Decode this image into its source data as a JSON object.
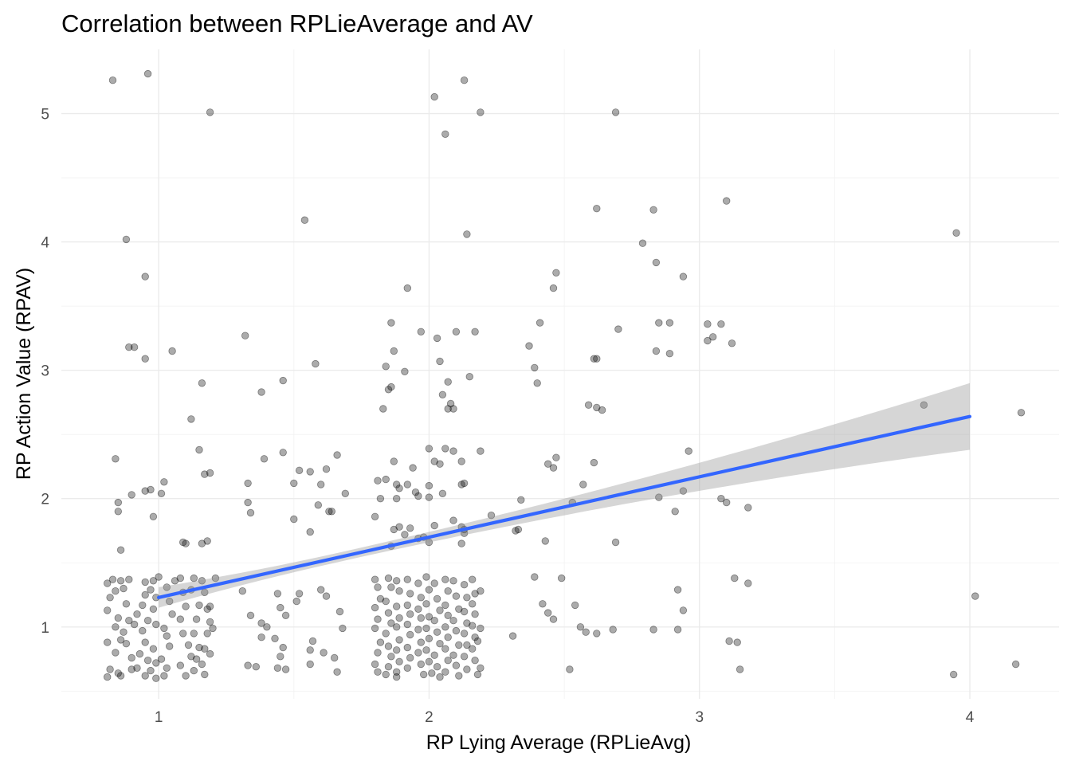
{
  "chart_data": {
    "type": "scatter",
    "title": "Correlation between RPLieAverage and AV",
    "xlabel": "RP Lying Average (RPLieAvg)",
    "ylabel": "RP Action Value (RPAV)",
    "xlim": [
      0.64,
      4.33
    ],
    "ylim": [
      0.44,
      5.5
    ],
    "xticks": [
      1,
      2,
      3,
      4
    ],
    "yticks": [
      1,
      2,
      3,
      4,
      5
    ],
    "grid": true,
    "colors": {
      "points": "#000000",
      "fit_line": "#3366ff",
      "band": "#999999"
    },
    "trend": {
      "method": "linear",
      "x": [
        1,
        4
      ],
      "y": [
        1.23,
        2.64
      ],
      "band_lower": [
        1.15,
        2.38
      ],
      "band_upper": [
        1.31,
        2.9
      ]
    },
    "points": [
      [
        0.83,
        5.26
      ],
      [
        0.96,
        5.31
      ],
      [
        1.19,
        5.01
      ],
      [
        2.02,
        5.13
      ],
      [
        2.13,
        5.26
      ],
      [
        2.19,
        5.01
      ],
      [
        2.06,
        4.84
      ],
      [
        2.69,
        5.01
      ],
      [
        0.88,
        4.02
      ],
      [
        1.54,
        4.17
      ],
      [
        2.14,
        4.06
      ],
      [
        2.62,
        4.26
      ],
      [
        2.83,
        4.25
      ],
      [
        3.1,
        4.32
      ],
      [
        2.79,
        3.99
      ],
      [
        2.84,
        3.84
      ],
      [
        3.95,
        4.07
      ],
      [
        0.95,
        3.73
      ],
      [
        2.47,
        3.76
      ],
      [
        2.46,
        3.64
      ],
      [
        1.92,
        3.64
      ],
      [
        2.94,
        3.73
      ],
      [
        0.89,
        3.18
      ],
      [
        0.91,
        3.18
      ],
      [
        1.05,
        3.15
      ],
      [
        1.32,
        3.27
      ],
      [
        1.58,
        3.05
      ],
      [
        1.86,
        3.37
      ],
      [
        1.97,
        3.3
      ],
      [
        2.03,
        3.25
      ],
      [
        2.1,
        3.3
      ],
      [
        2.17,
        3.3
      ],
      [
        2.41,
        3.37
      ],
      [
        2.37,
        3.19
      ],
      [
        2.7,
        3.32
      ],
      [
        2.85,
        3.37
      ],
      [
        2.89,
        3.37
      ],
      [
        3.03,
        3.36
      ],
      [
        3.08,
        3.36
      ],
      [
        3.03,
        3.23
      ],
      [
        3.05,
        3.26
      ],
      [
        3.12,
        3.21
      ],
      [
        2.84,
        3.15
      ],
      [
        2.89,
        3.13
      ],
      [
        2.61,
        3.09
      ],
      [
        1.87,
        3.15
      ],
      [
        2.04,
        3.07
      ],
      [
        0.95,
        3.09
      ],
      [
        1.16,
        2.9
      ],
      [
        1.38,
        2.83
      ],
      [
        1.46,
        2.92
      ],
      [
        1.84,
        3.03
      ],
      [
        1.91,
        2.99
      ],
      [
        1.86,
        2.87
      ],
      [
        1.85,
        2.85
      ],
      [
        2.07,
        2.91
      ],
      [
        2.15,
        2.95
      ],
      [
        2.39,
        3.02
      ],
      [
        2.4,
        2.9
      ],
      [
        2.62,
        3.09
      ],
      [
        2.05,
        2.81
      ],
      [
        1.83,
        2.7
      ],
      [
        2.07,
        2.7
      ],
      [
        2.08,
        2.74
      ],
      [
        2.09,
        2.7
      ],
      [
        2.59,
        2.73
      ],
      [
        2.62,
        2.71
      ],
      [
        2.64,
        2.69
      ],
      [
        3.83,
        2.73
      ],
      [
        4.19,
        2.67
      ],
      [
        1.12,
        2.62
      ],
      [
        1.15,
        2.38
      ],
      [
        1.46,
        2.36
      ],
      [
        1.66,
        2.34
      ],
      [
        1.39,
        2.31
      ],
      [
        1.52,
        2.22
      ],
      [
        1.56,
        2.21
      ],
      [
        1.62,
        2.23
      ],
      [
        1.94,
        2.24
      ],
      [
        1.87,
        2.29
      ],
      [
        2.02,
        2.29
      ],
      [
        2.06,
        2.39
      ],
      [
        2.09,
        2.37
      ],
      [
        2.0,
        2.39
      ],
      [
        2.19,
        2.37
      ],
      [
        2.12,
        2.29
      ],
      [
        2.04,
        2.27
      ],
      [
        2.44,
        2.27
      ],
      [
        2.47,
        2.32
      ],
      [
        2.46,
        2.24
      ],
      [
        2.61,
        2.28
      ],
      [
        2.96,
        2.37
      ],
      [
        0.84,
        2.31
      ],
      [
        1.17,
        2.19
      ],
      [
        1.19,
        2.2
      ],
      [
        1.02,
        2.13
      ],
      [
        1.01,
        2.04
      ],
      [
        0.97,
        2.07
      ],
      [
        0.95,
        2.06
      ],
      [
        0.9,
        2.03
      ],
      [
        0.85,
        1.97
      ],
      [
        0.85,
        1.9
      ],
      [
        0.98,
        1.86
      ],
      [
        1.33,
        2.12
      ],
      [
        1.5,
        2.12
      ],
      [
        1.6,
        2.11
      ],
      [
        1.69,
        2.04
      ],
      [
        1.59,
        1.95
      ],
      [
        1.63,
        1.9
      ],
      [
        1.64,
        1.9
      ],
      [
        1.33,
        1.97
      ],
      [
        1.34,
        1.89
      ],
      [
        1.81,
        2.14
      ],
      [
        1.84,
        2.15
      ],
      [
        1.88,
        2.11
      ],
      [
        1.92,
        2.11
      ],
      [
        1.89,
        2.08
      ],
      [
        2.0,
        2.1
      ],
      [
        1.95,
        2.05
      ],
      [
        1.96,
        2.02
      ],
      [
        1.88,
        2.0
      ],
      [
        2.13,
        2.12
      ],
      [
        2.12,
        2.11
      ],
      [
        2.05,
        2.04
      ],
      [
        2.0,
        2.01
      ],
      [
        1.82,
        2.0
      ],
      [
        2.57,
        2.11
      ],
      [
        2.53,
        1.97
      ],
      [
        2.34,
        1.99
      ],
      [
        2.85,
        2.01
      ],
      [
        2.94,
        2.06
      ],
      [
        3.08,
        2.0
      ],
      [
        3.1,
        1.97
      ],
      [
        3.18,
        1.93
      ],
      [
        1.09,
        1.66
      ],
      [
        1.1,
        1.65
      ],
      [
        1.16,
        1.65
      ],
      [
        1.18,
        1.67
      ],
      [
        0.86,
        1.6
      ],
      [
        1.21,
        1.38
      ],
      [
        1.5,
        1.84
      ],
      [
        1.56,
        1.74
      ],
      [
        1.8,
        1.86
      ],
      [
        1.87,
        1.76
      ],
      [
        1.89,
        1.78
      ],
      [
        1.93,
        1.77
      ],
      [
        1.91,
        1.72
      ],
      [
        2.02,
        1.79
      ],
      [
        2.09,
        1.83
      ],
      [
        2.12,
        1.78
      ],
      [
        1.98,
        1.7
      ],
      [
        1.96,
        1.69
      ],
      [
        1.86,
        1.63
      ],
      [
        2.0,
        1.66
      ],
      [
        2.13,
        1.73
      ],
      [
        2.13,
        1.76
      ],
      [
        2.12,
        1.65
      ],
      [
        2.43,
        1.67
      ],
      [
        2.33,
        1.76
      ],
      [
        2.69,
        1.66
      ],
      [
        2.91,
        1.9
      ],
      [
        2.23,
        1.87
      ],
      [
        2.32,
        1.75
      ],
      [
        2.39,
        1.39
      ],
      [
        2.49,
        1.38
      ],
      [
        3.13,
        1.38
      ],
      [
        3.18,
        1.34
      ],
      [
        2.92,
        1.29
      ],
      [
        4.02,
        1.24
      ],
      [
        2.94,
        1.13
      ],
      [
        2.42,
        1.18
      ],
      [
        2.44,
        1.11
      ],
      [
        2.46,
        1.06
      ],
      [
        2.54,
        1.17
      ],
      [
        2.56,
        1.0
      ],
      [
        2.58,
        0.96
      ],
      [
        2.62,
        0.95
      ],
      [
        2.68,
        0.98
      ],
      [
        2.83,
        0.98
      ],
      [
        2.92,
        0.98
      ],
      [
        3.11,
        0.89
      ],
      [
        3.14,
        0.88
      ],
      [
        3.15,
        0.67
      ],
      [
        2.52,
        0.67
      ],
      [
        2.31,
        0.93
      ],
      [
        3.94,
        0.63
      ],
      [
        4.17,
        0.71
      ],
      [
        0.81,
        1.34
      ],
      [
        0.83,
        1.37
      ],
      [
        0.86,
        1.36
      ],
      [
        0.87,
        1.3
      ],
      [
        0.89,
        1.37
      ],
      [
        0.82,
        1.23
      ],
      [
        0.84,
        1.28
      ],
      [
        0.88,
        1.18
      ],
      [
        0.81,
        1.13
      ],
      [
        0.85,
        1.07
      ],
      [
        0.84,
        1.0
      ],
      [
        0.87,
        0.96
      ],
      [
        0.89,
        1.05
      ],
      [
        0.91,
        1.02
      ],
      [
        0.92,
        1.1
      ],
      [
        0.86,
        0.9
      ],
      [
        0.88,
        0.87
      ],
      [
        0.81,
        0.88
      ],
      [
        0.84,
        0.8
      ],
      [
        0.9,
        0.76
      ],
      [
        0.82,
        0.67
      ],
      [
        0.85,
        0.64
      ],
      [
        0.81,
        0.61
      ],
      [
        0.86,
        0.62
      ],
      [
        0.9,
        0.67
      ],
      [
        0.92,
        0.68
      ],
      [
        0.95,
        1.35
      ],
      [
        0.98,
        1.36
      ],
      [
        1.0,
        1.39
      ],
      [
        0.97,
        1.29
      ],
      [
        0.95,
        1.25
      ],
      [
        0.99,
        1.23
      ],
      [
        0.94,
        1.17
      ],
      [
        0.98,
        1.14
      ],
      [
        0.96,
        1.05
      ],
      [
        0.99,
        1.02
      ],
      [
        0.94,
        0.97
      ],
      [
        0.95,
        0.88
      ],
      [
        0.98,
        0.83
      ],
      [
        0.93,
        0.79
      ],
      [
        0.96,
        0.74
      ],
      [
        0.99,
        0.72
      ],
      [
        0.97,
        0.66
      ],
      [
        0.95,
        0.62
      ],
      [
        0.99,
        0.6
      ],
      [
        1.02,
        0.62
      ],
      [
        1.03,
        0.68
      ],
      [
        1.01,
        0.75
      ],
      [
        1.04,
        0.85
      ],
      [
        1.03,
        0.93
      ],
      [
        1.02,
        0.99
      ],
      [
        1.05,
        1.1
      ],
      [
        1.04,
        1.2
      ],
      [
        1.03,
        1.31
      ],
      [
        1.06,
        1.36
      ],
      [
        1.08,
        1.38
      ],
      [
        1.09,
        1.27
      ],
      [
        1.1,
        1.16
      ],
      [
        1.08,
        1.06
      ],
      [
        1.09,
        0.95
      ],
      [
        1.11,
        0.86
      ],
      [
        1.12,
        0.77
      ],
      [
        1.08,
        0.7
      ],
      [
        1.1,
        0.62
      ],
      [
        1.13,
        0.66
      ],
      [
        1.14,
        0.75
      ],
      [
        1.15,
        0.84
      ],
      [
        1.13,
        0.95
      ],
      [
        1.14,
        1.06
      ],
      [
        1.15,
        1.17
      ],
      [
        1.12,
        1.29
      ],
      [
        1.13,
        1.38
      ],
      [
        1.16,
        1.36
      ],
      [
        1.17,
        1.27
      ],
      [
        1.18,
        1.14
      ],
      [
        1.19,
        1.04
      ],
      [
        1.18,
        0.95
      ],
      [
        1.17,
        0.83
      ],
      [
        1.16,
        0.71
      ],
      [
        1.17,
        0.63
      ],
      [
        1.19,
        0.79
      ],
      [
        1.2,
        0.99
      ],
      [
        1.19,
        1.16
      ],
      [
        1.31,
        1.28
      ],
      [
        1.34,
        1.09
      ],
      [
        1.38,
        1.03
      ],
      [
        1.4,
        1.0
      ],
      [
        1.38,
        0.92
      ],
      [
        1.33,
        0.7
      ],
      [
        1.36,
        0.69
      ],
      [
        1.44,
        1.26
      ],
      [
        1.45,
        1.15
      ],
      [
        1.47,
        1.09
      ],
      [
        1.43,
        0.91
      ],
      [
        1.46,
        0.84
      ],
      [
        1.45,
        0.77
      ],
      [
        1.44,
        0.68
      ],
      [
        1.47,
        0.67
      ],
      [
        1.52,
        1.26
      ],
      [
        1.51,
        1.2
      ],
      [
        1.57,
        0.89
      ],
      [
        1.56,
        0.82
      ],
      [
        1.56,
        0.71
      ],
      [
        1.6,
        1.29
      ],
      [
        1.62,
        1.24
      ],
      [
        1.61,
        0.8
      ],
      [
        1.65,
        0.76
      ],
      [
        1.67,
        1.12
      ],
      [
        1.68,
        0.99
      ],
      [
        1.66,
        0.65
      ],
      [
        1.8,
        1.37
      ],
      [
        1.81,
        1.31
      ],
      [
        1.82,
        1.22
      ],
      [
        1.8,
        1.15
      ],
      [
        1.81,
        1.06
      ],
      [
        1.8,
        0.99
      ],
      [
        1.82,
        0.88
      ],
      [
        1.81,
        0.8
      ],
      [
        1.8,
        0.71
      ],
      [
        1.81,
        0.65
      ],
      [
        1.85,
        1.38
      ],
      [
        1.86,
        1.31
      ],
      [
        1.84,
        1.2
      ],
      [
        1.85,
        1.11
      ],
      [
        1.86,
        1.03
      ],
      [
        1.84,
        0.95
      ],
      [
        1.85,
        0.85
      ],
      [
        1.86,
        0.77
      ],
      [
        1.85,
        0.69
      ],
      [
        1.84,
        0.63
      ],
      [
        1.88,
        1.36
      ],
      [
        1.89,
        1.28
      ],
      [
        1.88,
        1.16
      ],
      [
        1.89,
        1.07
      ],
      [
        1.88,
        1.0
      ],
      [
        1.89,
        0.9
      ],
      [
        1.88,
        0.82
      ],
      [
        1.89,
        0.73
      ],
      [
        1.88,
        0.65
      ],
      [
        1.88,
        0.61
      ],
      [
        1.92,
        1.37
      ],
      [
        1.93,
        1.26
      ],
      [
        1.92,
        1.17
      ],
      [
        1.93,
        1.1
      ],
      [
        1.92,
        1.02
      ],
      [
        1.93,
        0.94
      ],
      [
        1.92,
        0.84
      ],
      [
        1.93,
        0.76
      ],
      [
        1.92,
        0.68
      ],
      [
        1.96,
        1.34
      ],
      [
        1.97,
        1.23
      ],
      [
        1.96,
        1.14
      ],
      [
        1.97,
        1.07
      ],
      [
        1.96,
        0.98
      ],
      [
        1.97,
        0.88
      ],
      [
        1.96,
        0.8
      ],
      [
        1.97,
        0.71
      ],
      [
        1.98,
        0.63
      ],
      [
        1.99,
        1.39
      ],
      [
        2.0,
        1.29
      ],
      [
        1.99,
        1.18
      ],
      [
        2.0,
        1.08
      ],
      [
        1.99,
        0.99
      ],
      [
        2.0,
        0.91
      ],
      [
        1.99,
        0.82
      ],
      [
        2.0,
        0.73
      ],
      [
        2.01,
        0.64
      ],
      [
        2.02,
        1.34
      ],
      [
        2.03,
        1.22
      ],
      [
        2.04,
        1.13
      ],
      [
        2.02,
        1.05
      ],
      [
        2.03,
        0.96
      ],
      [
        2.04,
        0.87
      ],
      [
        2.02,
        0.78
      ],
      [
        2.03,
        0.69
      ],
      [
        2.04,
        0.61
      ],
      [
        2.06,
        1.37
      ],
      [
        2.07,
        1.28
      ],
      [
        2.06,
        1.17
      ],
      [
        2.07,
        1.09
      ],
      [
        2.06,
        1.0
      ],
      [
        2.07,
        0.92
      ],
      [
        2.06,
        0.83
      ],
      [
        2.07,
        0.74
      ],
      [
        2.06,
        0.65
      ],
      [
        2.09,
        1.36
      ],
      [
        2.1,
        1.24
      ],
      [
        2.11,
        1.14
      ],
      [
        2.09,
        1.05
      ],
      [
        2.1,
        0.97
      ],
      [
        2.11,
        0.86
      ],
      [
        2.09,
        0.78
      ],
      [
        2.1,
        0.7
      ],
      [
        2.11,
        0.62
      ],
      [
        2.13,
        1.33
      ],
      [
        2.14,
        1.23
      ],
      [
        2.13,
        1.12
      ],
      [
        2.14,
        1.03
      ],
      [
        2.13,
        0.95
      ],
      [
        2.14,
        0.86
      ],
      [
        2.13,
        0.77
      ],
      [
        2.14,
        0.67
      ],
      [
        2.16,
        1.37
      ],
      [
        2.17,
        1.26
      ],
      [
        2.16,
        1.18
      ],
      [
        2.17,
        1.1
      ],
      [
        2.16,
        1.01
      ],
      [
        2.17,
        0.92
      ],
      [
        2.16,
        0.83
      ],
      [
        2.17,
        0.74
      ],
      [
        2.18,
        0.63
      ],
      [
        2.19,
        1.28
      ],
      [
        2.19,
        0.99
      ],
      [
        2.18,
        0.89
      ],
      [
        2.19,
        0.68
      ]
    ]
  }
}
